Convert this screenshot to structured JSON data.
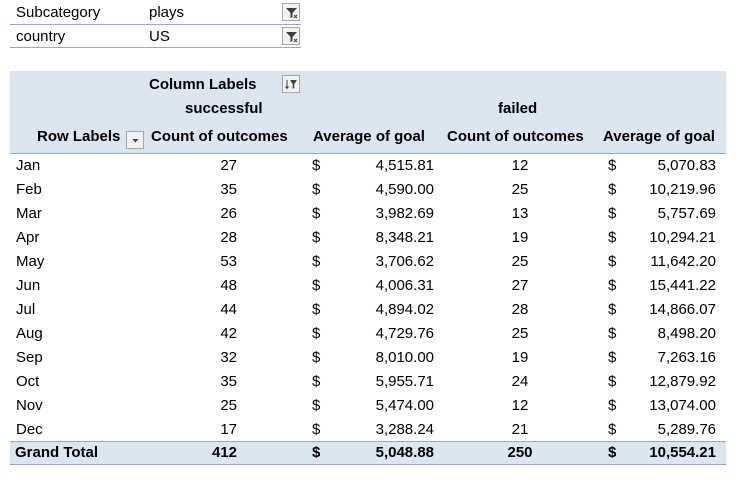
{
  "filters": [
    {
      "field": "Subcategory",
      "value": "plays"
    },
    {
      "field": "country",
      "value": "US"
    }
  ],
  "pivot": {
    "column_labels": "Column Labels",
    "row_labels": "Row Labels",
    "group1": "successful",
    "group2": "failed",
    "col_count": "Count of outcomes",
    "col_avg": "Average of goal",
    "currency": "$",
    "rows": [
      {
        "month": "Jan",
        "s_count": "27",
        "s_avg": "4,515.81",
        "f_count": "12",
        "f_avg": "5,070.83"
      },
      {
        "month": "Feb",
        "s_count": "35",
        "s_avg": "4,590.00",
        "f_count": "25",
        "f_avg": "10,219.96"
      },
      {
        "month": "Mar",
        "s_count": "26",
        "s_avg": "3,982.69",
        "f_count": "13",
        "f_avg": "5,757.69"
      },
      {
        "month": "Apr",
        "s_count": "28",
        "s_avg": "8,348.21",
        "f_count": "19",
        "f_avg": "10,294.21"
      },
      {
        "month": "May",
        "s_count": "53",
        "s_avg": "3,706.62",
        "f_count": "25",
        "f_avg": "11,642.20"
      },
      {
        "month": "Jun",
        "s_count": "48",
        "s_avg": "4,006.31",
        "f_count": "27",
        "f_avg": "15,441.22"
      },
      {
        "month": "Jul",
        "s_count": "44",
        "s_avg": "4,894.02",
        "f_count": "28",
        "f_avg": "14,866.07"
      },
      {
        "month": "Aug",
        "s_count": "42",
        "s_avg": "4,729.76",
        "f_count": "25",
        "f_avg": "8,498.20"
      },
      {
        "month": "Sep",
        "s_count": "32",
        "s_avg": "8,010.00",
        "f_count": "19",
        "f_avg": "7,263.16"
      },
      {
        "month": "Oct",
        "s_count": "35",
        "s_avg": "5,955.71",
        "f_count": "24",
        "f_avg": "12,879.92"
      },
      {
        "month": "Nov",
        "s_count": "25",
        "s_avg": "5,474.00",
        "f_count": "12",
        "f_avg": "13,074.00"
      },
      {
        "month": "Dec",
        "s_count": "17",
        "s_avg": "3,288.24",
        "f_count": "21",
        "f_avg": "5,289.76"
      }
    ],
    "grand_total": {
      "label": "Grand Total",
      "s_count": "412",
      "s_avg": "5,048.88",
      "f_count": "250",
      "f_avg": "10,554.21"
    }
  },
  "colors": {
    "header_band": "#dce6f1",
    "border": "#8ea9db"
  }
}
